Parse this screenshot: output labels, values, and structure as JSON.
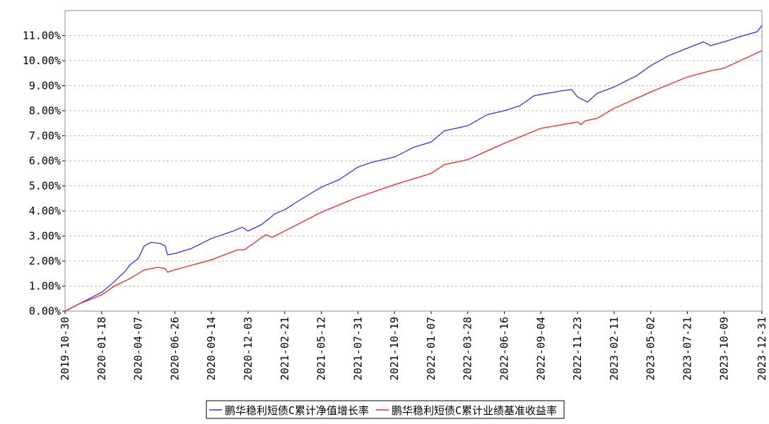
{
  "chart_data": {
    "type": "line",
    "legend": "bottom",
    "grid": true,
    "xlim": [
      "2019-10-30",
      "2023-12-31"
    ],
    "xticks": [
      "2019-10-30",
      "2020-01-18",
      "2020-04-07",
      "2020-06-26",
      "2020-09-14",
      "2020-12-03",
      "2021-02-21",
      "2021-05-12",
      "2021-07-31",
      "2021-10-19",
      "2022-01-07",
      "2022-03-28",
      "2022-06-16",
      "2022-09-04",
      "2022-11-23",
      "2023-02-11",
      "2023-05-02",
      "2023-07-21",
      "2023-10-09",
      "2023-12-31"
    ],
    "ylim": [
      0,
      12
    ],
    "yticks": [
      {
        "value": 0,
        "label": "0.00%"
      },
      {
        "value": 1,
        "label": "1.00%"
      },
      {
        "value": 2,
        "label": "2.00%"
      },
      {
        "value": 3,
        "label": "3.00%"
      },
      {
        "value": 4,
        "label": "4.00%"
      },
      {
        "value": 5,
        "label": "5.00%"
      },
      {
        "value": 6,
        "label": "6.00%"
      },
      {
        "value": 7,
        "label": "7.00%"
      },
      {
        "value": 8,
        "label": "8.00%"
      },
      {
        "value": 9,
        "label": "9.00%"
      },
      {
        "value": 10,
        "label": "10.00%"
      },
      {
        "value": 11,
        "label": "11.00%"
      }
    ],
    "series": [
      {
        "name": "鹏华稳利短债C累计净值增长率",
        "color": "#3333ff",
        "x": [
          "2019-10-30",
          "2019-12-01",
          "2020-01-18",
          "2020-02-10",
          "2020-03-10",
          "2020-03-20",
          "2020-04-07",
          "2020-04-20",
          "2020-05-05",
          "2020-05-25",
          "2020-06-05",
          "2020-06-10",
          "2020-06-26",
          "2020-08-01",
          "2020-09-14",
          "2020-11-01",
          "2020-11-20",
          "2020-12-03",
          "2021-01-01",
          "2021-02-01",
          "2021-02-21",
          "2021-04-01",
          "2021-05-12",
          "2021-06-20",
          "2021-07-31",
          "2021-09-01",
          "2021-10-19",
          "2021-12-01",
          "2022-01-07",
          "2022-02-05",
          "2022-03-28",
          "2022-05-10",
          "2022-06-16",
          "2022-07-20",
          "2022-08-20",
          "2022-09-04",
          "2022-10-20",
          "2022-11-10",
          "2022-11-23",
          "2022-12-15",
          "2023-01-05",
          "2023-02-11",
          "2023-04-01",
          "2023-05-02",
          "2023-06-10",
          "2023-07-21",
          "2023-08-25",
          "2023-09-10",
          "2023-10-09",
          "2023-11-20",
          "2023-12-20",
          "2023-12-31"
        ],
        "values": [
          0,
          0.3,
          0.75,
          1.1,
          1.6,
          1.85,
          2.1,
          2.6,
          2.75,
          2.7,
          2.6,
          2.25,
          2.3,
          2.5,
          2.9,
          3.2,
          3.35,
          3.2,
          3.45,
          3.9,
          4.05,
          4.5,
          4.95,
          5.25,
          5.75,
          5.95,
          6.15,
          6.55,
          6.75,
          7.2,
          7.4,
          7.85,
          8.0,
          8.2,
          8.6,
          8.65,
          8.8,
          8.85,
          8.55,
          8.35,
          8.7,
          8.95,
          9.4,
          9.8,
          10.2,
          10.5,
          10.75,
          10.6,
          10.75,
          11.0,
          11.15,
          11.4
        ]
      },
      {
        "name": "鹏华稳利短债C累计业绩基准收益率",
        "color": "#ff2020",
        "x": [
          "2019-10-30",
          "2019-12-01",
          "2020-01-18",
          "2020-02-15",
          "2020-03-20",
          "2020-04-07",
          "2020-04-20",
          "2020-05-20",
          "2020-06-05",
          "2020-06-10",
          "2020-06-26",
          "2020-09-14",
          "2020-11-10",
          "2020-11-25",
          "2020-12-15",
          "2021-01-10",
          "2021-01-25",
          "2021-02-21",
          "2021-05-12",
          "2021-07-31",
          "2021-10-19",
          "2022-01-07",
          "2022-02-05",
          "2022-03-28",
          "2022-06-16",
          "2022-09-04",
          "2022-11-23",
          "2022-12-01",
          "2022-12-10",
          "2023-01-05",
          "2023-02-11",
          "2023-05-02",
          "2023-07-21",
          "2023-09-10",
          "2023-10-09",
          "2023-12-31"
        ],
        "values": [
          0,
          0.3,
          0.65,
          1.0,
          1.3,
          1.5,
          1.65,
          1.75,
          1.7,
          1.55,
          1.65,
          2.05,
          2.45,
          2.45,
          2.7,
          3.05,
          2.95,
          3.2,
          3.95,
          4.55,
          5.05,
          5.5,
          5.85,
          6.05,
          6.7,
          7.3,
          7.55,
          7.45,
          7.6,
          7.7,
          8.1,
          8.75,
          9.35,
          9.6,
          9.7,
          10.4
        ]
      }
    ]
  }
}
